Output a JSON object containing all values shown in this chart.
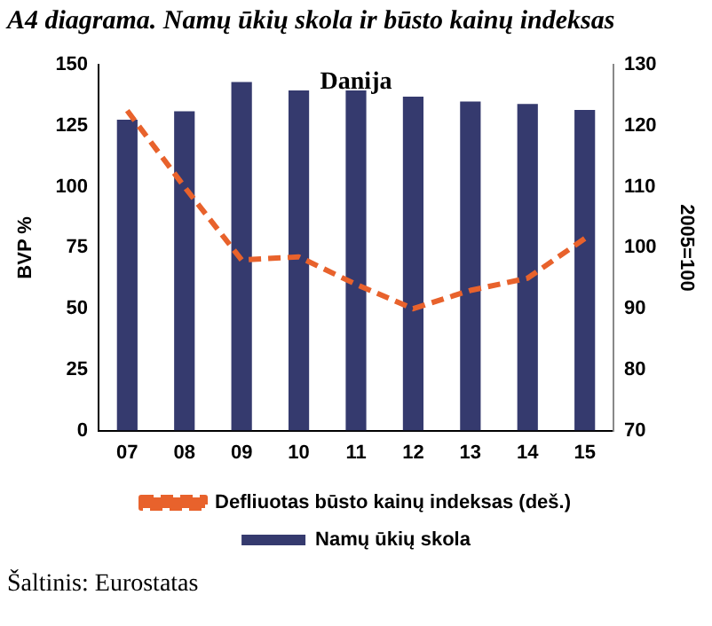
{
  "chart_data": {
    "type": "bar",
    "title": "A4 diagrama. Namų ūkių skola ir būsto kainų indeksas",
    "subtitle": "Danija",
    "ylabel": "BVP %",
    "y2label": "2005=100",
    "annotations": [
      "Šaltinis: Eurostatas"
    ],
    "categories": [
      "07",
      "08",
      "09",
      "10",
      "11",
      "12",
      "13",
      "14",
      "15"
    ],
    "series": [
      {
        "name": "Namų ūkių skola",
        "color": "#353a6e",
        "values": [
          127.5,
          131,
          143,
          139.5,
          139.5,
          137,
          135,
          134,
          131.5
        ]
      },
      {
        "name": "Defliuotas būsto kainų indeksas (deš.)",
        "type": "line",
        "axis": "y2",
        "line_style": "dashed",
        "marker": "none",
        "color": "#e8622c",
        "values": [
          122.5,
          110,
          98,
          98.5,
          94,
          90,
          93,
          95,
          101.5
        ]
      }
    ],
    "ylim": [
      0,
      150
    ],
    "yticks": [
      0,
      25,
      50,
      75,
      100,
      125,
      150
    ],
    "y2lim": [
      70,
      130
    ],
    "y2ticks": [
      70,
      80,
      90,
      100,
      110,
      120,
      130
    ],
    "grid": false,
    "legend": "bottom"
  }
}
